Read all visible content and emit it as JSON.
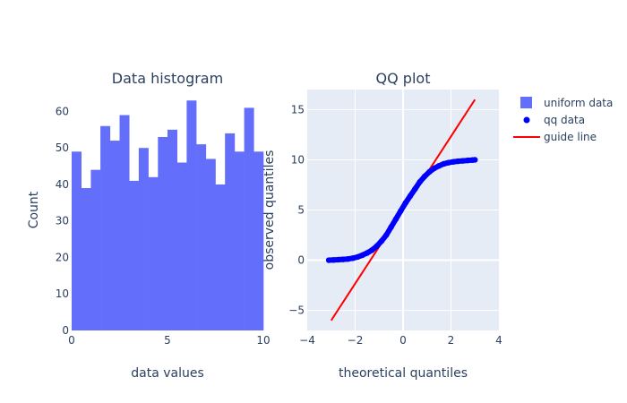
{
  "chart_data": [
    {
      "type": "bar",
      "title": "Data histogram",
      "xlabel": "data values",
      "ylabel": "Count",
      "xlim": [
        0,
        10
      ],
      "ylim": [
        0,
        66
      ],
      "xticks": [
        0,
        5,
        10
      ],
      "yticks": [
        0,
        10,
        20,
        30,
        40,
        50,
        60
      ],
      "bin_width": 0.5,
      "bin_starts": [
        0,
        0.5,
        1,
        1.5,
        2,
        2.5,
        3,
        3.5,
        4,
        4.5,
        5,
        5.5,
        6,
        6.5,
        7,
        7.5,
        8,
        8.5,
        9,
        9.5
      ],
      "values": [
        49,
        39,
        44,
        56,
        52,
        59,
        41,
        50,
        42,
        53,
        55,
        46,
        63,
        51,
        47,
        40,
        54,
        49,
        61,
        49
      ],
      "series_name": "uniform data",
      "color": "#636efa",
      "grid": false,
      "background": "#ffffff"
    },
    {
      "type": "scatter",
      "title": "QQ plot",
      "xlabel": "theoretical quantiles",
      "ylabel": "observed quantiles",
      "xlim": [
        -4,
        4
      ],
      "ylim": [
        -7,
        17
      ],
      "xticks": [
        -4,
        -2,
        0,
        2,
        4
      ],
      "yticks": [
        -5,
        0,
        5,
        10,
        15
      ],
      "grid": true,
      "background": "#e5ecf6",
      "series": [
        {
          "name": "qq data",
          "kind": "markers",
          "color": "#0000ff",
          "x": [
            -3.1,
            -2.9,
            -2.7,
            -2.5,
            -2.3,
            -2.1,
            -1.9,
            -1.7,
            -1.5,
            -1.3,
            -1.1,
            -0.9,
            -0.7,
            -0.5,
            -0.3,
            -0.1,
            0.1,
            0.3,
            0.5,
            0.7,
            0.9,
            1.1,
            1.3,
            1.5,
            1.7,
            1.9,
            2.1,
            2.3,
            2.5,
            2.7,
            2.9,
            3.0
          ],
          "y": [
            0.0,
            0.02,
            0.05,
            0.08,
            0.12,
            0.2,
            0.32,
            0.5,
            0.72,
            1.0,
            1.4,
            1.9,
            2.5,
            3.3,
            4.1,
            4.9,
            5.7,
            6.4,
            7.1,
            7.8,
            8.35,
            8.8,
            9.15,
            9.4,
            9.6,
            9.72,
            9.8,
            9.86,
            9.9,
            9.94,
            9.98,
            10.0
          ]
        },
        {
          "name": "guide line",
          "kind": "line",
          "color": "#ff0000",
          "x": [
            -3.0,
            3.0
          ],
          "y": [
            -6.0,
            16.0
          ]
        }
      ]
    }
  ],
  "legend": {
    "placement": "top-right",
    "items": [
      {
        "label": "uniform data",
        "symbol": "square",
        "color": "#636efa"
      },
      {
        "label": "qq data",
        "symbol": "dot",
        "color": "#0000ff"
      },
      {
        "label": "guide line",
        "symbol": "line",
        "color": "#ff0000"
      }
    ]
  }
}
